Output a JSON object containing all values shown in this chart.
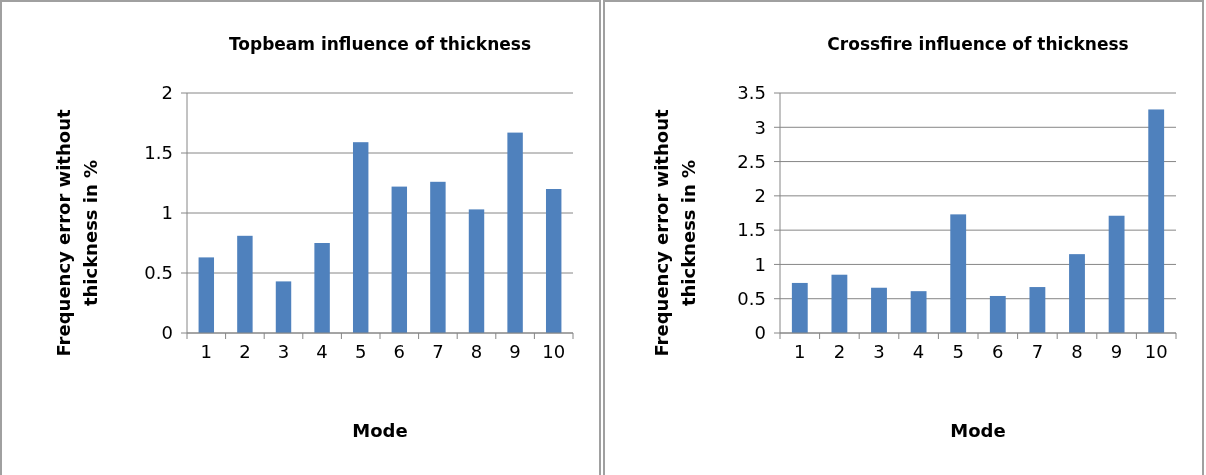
{
  "chart_data": [
    {
      "type": "bar",
      "title": "Topbeam influence of thickness",
      "xlabel": "Mode",
      "ylabel": "Frequency error without thickness in %",
      "categories": [
        "1",
        "2",
        "3",
        "4",
        "5",
        "6",
        "7",
        "8",
        "9",
        "10"
      ],
      "values": [
        0.63,
        0.81,
        0.43,
        0.75,
        1.59,
        1.22,
        1.26,
        1.03,
        1.67,
        1.2
      ],
      "color": "#4f81bd",
      "ylim": [
        0,
        2
      ],
      "yticks": [
        0,
        0.5,
        1,
        1.5,
        2
      ],
      "grid": "y"
    },
    {
      "type": "bar",
      "title": "Crossfire influence of thickness",
      "xlabel": "Mode",
      "ylabel": "Frequency error without thickness in %",
      "categories": [
        "1",
        "2",
        "3",
        "4",
        "5",
        "6",
        "7",
        "8",
        "9",
        "10"
      ],
      "values": [
        0.73,
        0.85,
        0.66,
        0.61,
        1.73,
        0.54,
        0.67,
        1.15,
        1.71,
        3.26
      ],
      "color": "#4f81bd",
      "ylim": [
        0,
        3.5
      ],
      "yticks": [
        0,
        0.5,
        1,
        1.5,
        2,
        2.5,
        3,
        3.5
      ],
      "grid": "y"
    }
  ]
}
